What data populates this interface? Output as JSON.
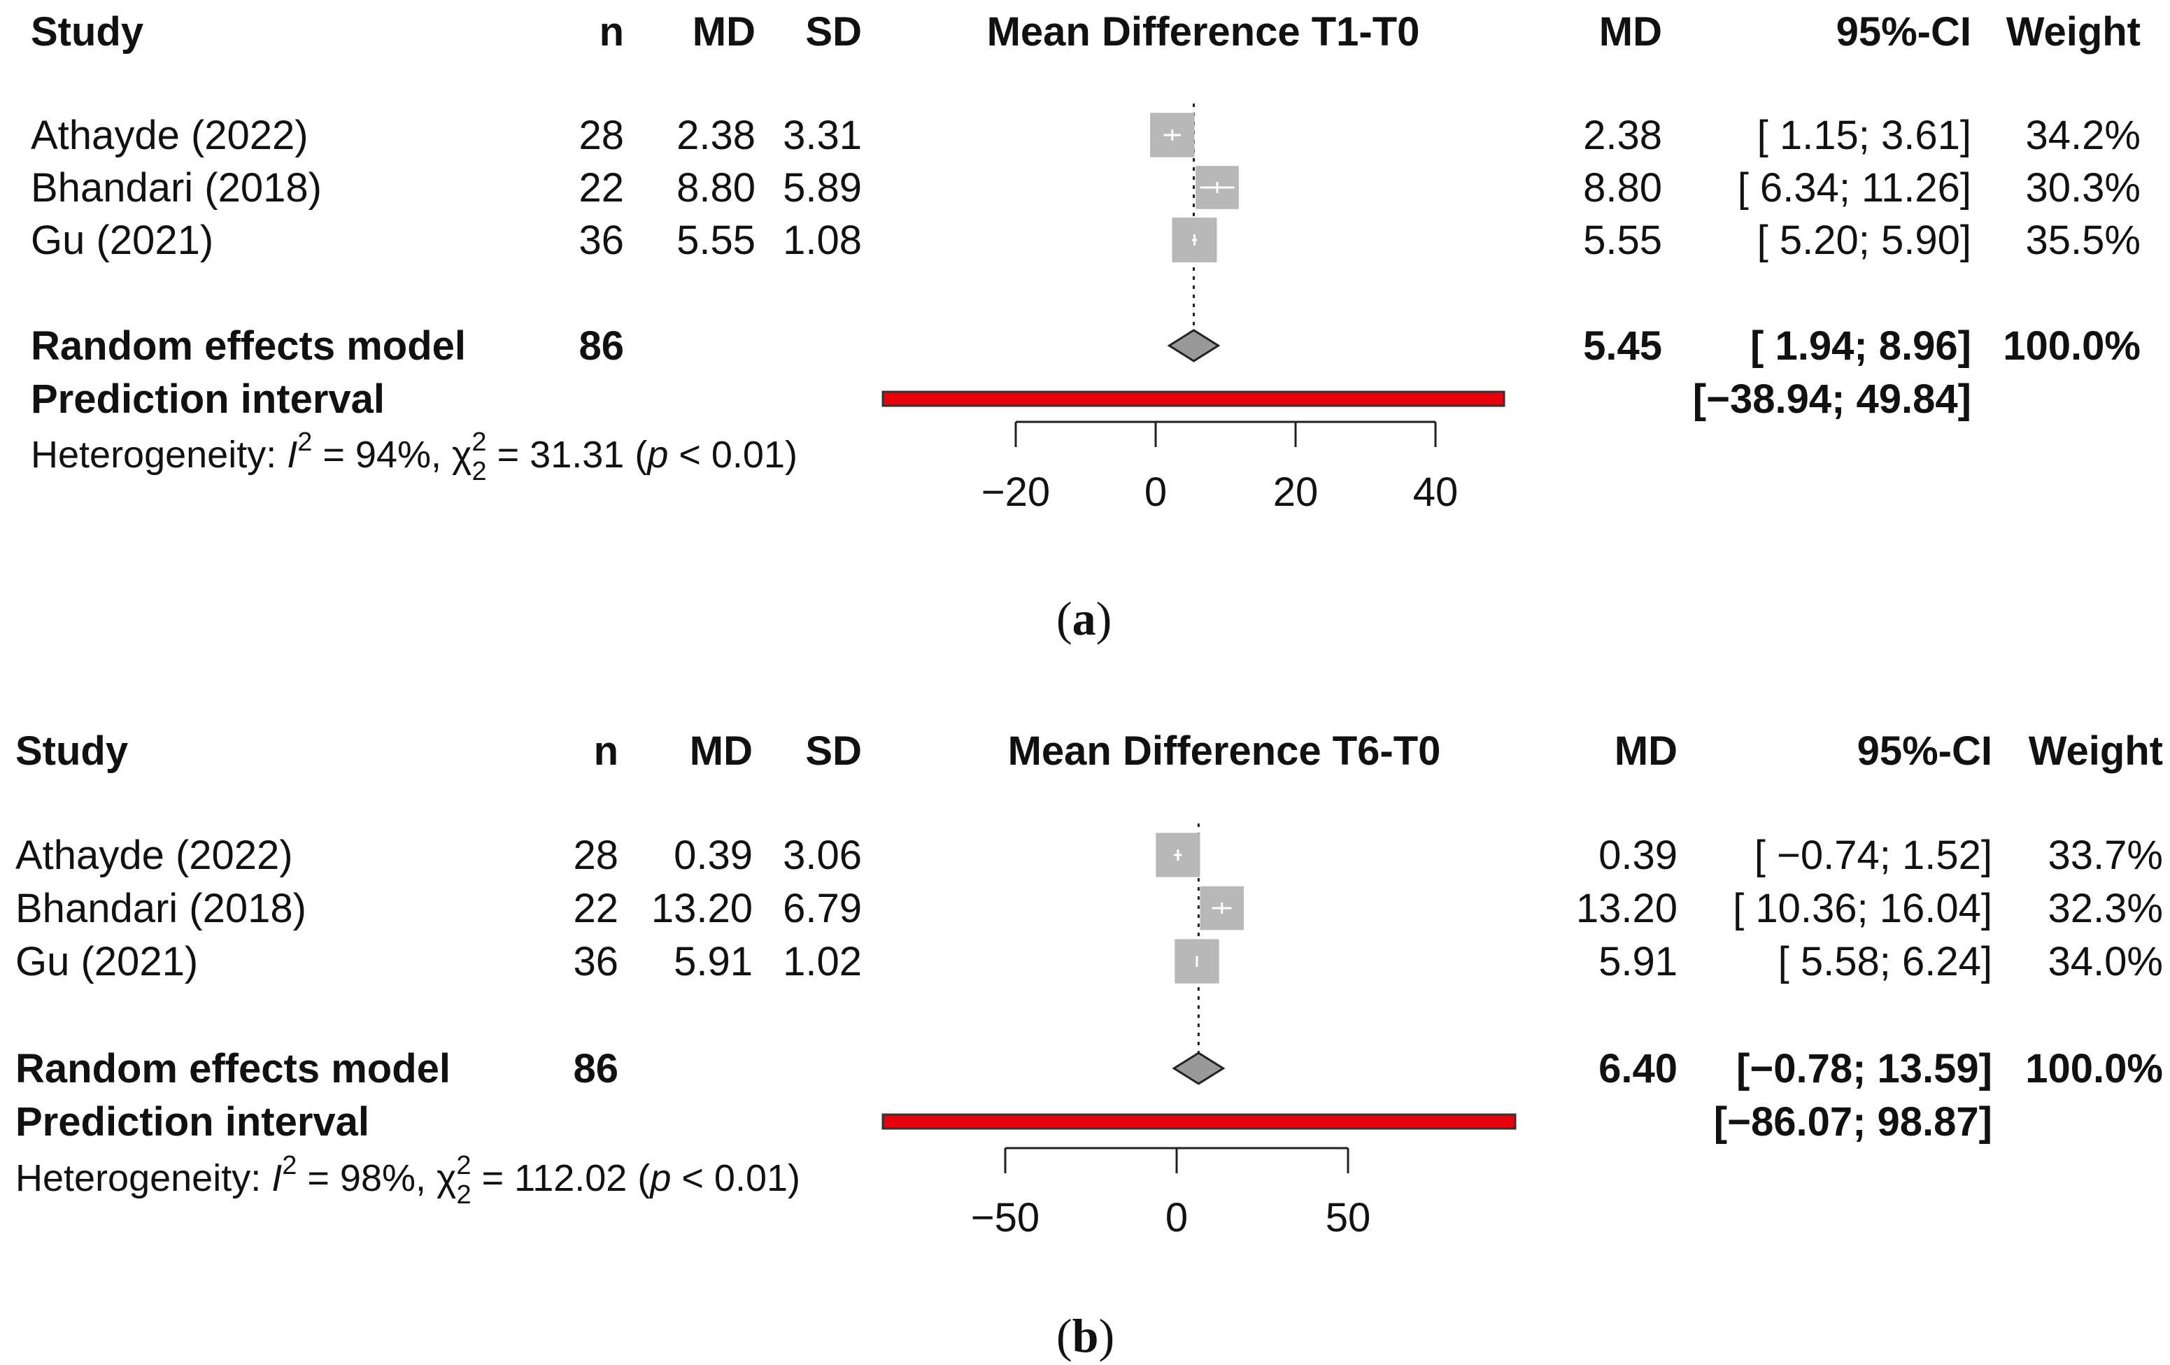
{
  "figure_labels": {
    "a": "a",
    "b": "b"
  },
  "chart_data": [
    {
      "type": "forest",
      "panel": "a",
      "title": "Mean Difference T1-T0",
      "columns": {
        "study": "Study",
        "n": "n",
        "md": "MD",
        "sd": "SD",
        "md_right": "MD",
        "ci": "95%-CI",
        "weight": "Weight"
      },
      "studies": [
        {
          "name": "Athayde (2022)",
          "n": "28",
          "md": 2.38,
          "md_text": "2.38",
          "sd": "3.31",
          "ci_low": 1.15,
          "ci_high": 3.61,
          "ci_text": "[ 1.15; 3.61]",
          "weight": 34.2,
          "weight_text": "34.2%"
        },
        {
          "name": "Bhandari (2018)",
          "n": "22",
          "md": 8.8,
          "md_text": "8.80",
          "sd": "5.89",
          "ci_low": 6.34,
          "ci_high": 11.26,
          "ci_text": "[ 6.34; 11.26]",
          "weight": 30.3,
          "weight_text": "30.3%"
        },
        {
          "name": "Gu (2021)",
          "n": "36",
          "md": 5.55,
          "md_text": "5.55",
          "sd": "1.08",
          "ci_low": 5.2,
          "ci_high": 5.9,
          "ci_text": "[ 5.20; 5.90]",
          "weight": 35.5,
          "weight_text": "35.5%"
        }
      ],
      "pooled": {
        "label": "Random effects model",
        "n": "86",
        "md": 5.45,
        "md_text": "5.45",
        "ci_low": 1.94,
        "ci_high": 8.96,
        "ci_text": "[ 1.94; 8.96]",
        "weight_text": "100.0%"
      },
      "prediction": {
        "label": "Prediction interval",
        "low": -38.94,
        "high": 49.84,
        "text": "[−38.94; 49.84]"
      },
      "heterogeneity": {
        "prefix": "Heterogeneity: ",
        "i2": "94%",
        "chi2": "31.31",
        "p": "0.01"
      },
      "axis": {
        "ticks": [
          -20,
          0,
          20,
          40
        ],
        "tick_labels": [
          "−20",
          "0",
          "20",
          "40"
        ],
        "xlim": [
          -38.94,
          49.84
        ]
      },
      "colors": {
        "square": "#b8b8b8",
        "diamond": "#999999",
        "prediction": "#e8000b"
      }
    },
    {
      "type": "forest",
      "panel": "b",
      "title": "Mean Difference T6-T0",
      "columns": {
        "study": "Study",
        "n": "n",
        "md": "MD",
        "sd": "SD",
        "md_right": "MD",
        "ci": "95%-CI",
        "weight": "Weight"
      },
      "studies": [
        {
          "name": "Athayde (2022)",
          "n": "28",
          "md": 0.39,
          "md_text": "0.39",
          "sd": "3.06",
          "ci_low": -0.74,
          "ci_high": 1.52,
          "ci_text": "[ −0.74; 1.52]",
          "weight": 33.7,
          "weight_text": "33.7%"
        },
        {
          "name": "Bhandari (2018)",
          "n": "22",
          "md": 13.2,
          "md_text": "13.20",
          "sd": "6.79",
          "ci_low": 10.36,
          "ci_high": 16.04,
          "ci_text": "[ 10.36; 16.04]",
          "weight": 32.3,
          "weight_text": "32.3%"
        },
        {
          "name": "Gu (2021)",
          "n": "36",
          "md": 5.91,
          "md_text": "5.91",
          "sd": "1.02",
          "ci_low": 5.58,
          "ci_high": 6.24,
          "ci_text": "[ 5.58; 6.24]",
          "weight": 34.0,
          "weight_text": "34.0%"
        }
      ],
      "pooled": {
        "label": "Random effects model",
        "n": "86",
        "md": 6.4,
        "md_text": "6.40",
        "ci_low": -0.78,
        "ci_high": 13.59,
        "ci_text": "[−0.78; 13.59]",
        "weight_text": "100.0%"
      },
      "prediction": {
        "label": "Prediction interval",
        "low": -86.07,
        "high": 98.87,
        "text": "[−86.07; 98.87]"
      },
      "heterogeneity": {
        "prefix": "Heterogeneity: ",
        "i2": "98%",
        "chi2": "112.02",
        "p": "0.01"
      },
      "axis": {
        "ticks": [
          -50,
          0,
          50
        ],
        "tick_labels": [
          "−50",
          "0",
          "50"
        ],
        "xlim": [
          -86.07,
          98.87
        ]
      },
      "colors": {
        "square": "#b8b8b8",
        "diamond": "#999999",
        "prediction": "#e8000b"
      }
    }
  ]
}
